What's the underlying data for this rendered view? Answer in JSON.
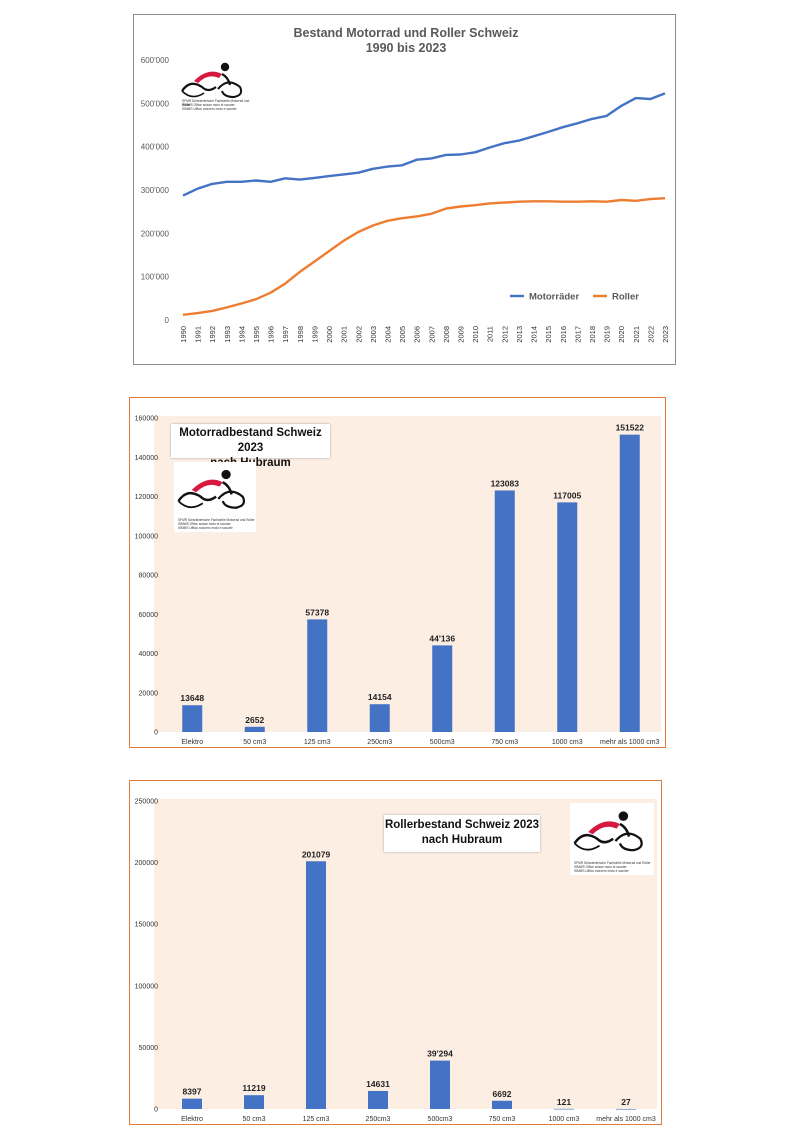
{
  "colors": {
    "motorraeder": "#4472c4",
    "roller": "#ed7d31",
    "bar": "#4472c4",
    "plot_bg": "#fdeee4",
    "logo_red": "#d7193f"
  },
  "logo": {
    "line1": "SFMR  Schweizerische Fachstelle Motorrad und Roller",
    "line2": "ISMWS  Office suisse moto et scooter",
    "line3": "ISMMS  Ufficio svizzero moto e scooter"
  },
  "chart_data": [
    {
      "type": "line",
      "title": "Bestand Motorrad und Roller Schweiz",
      "subtitle": "1990 bis 2023",
      "xlabel": "",
      "ylabel": "",
      "ylim": [
        0,
        600000
      ],
      "yticks": [
        "0",
        "100'000",
        "200'000",
        "300'000",
        "400'000",
        "500'000",
        "600'000"
      ],
      "x": [
        "1990",
        "1991",
        "1992",
        "1993",
        "1994",
        "1995",
        "1996",
        "1997",
        "1998",
        "1999",
        "2000",
        "2001",
        "2002",
        "2003",
        "2004",
        "2005",
        "2006",
        "2007",
        "2008",
        "2009",
        "2010",
        "2011",
        "2012",
        "2013",
        "2014",
        "2015",
        "2016",
        "2017",
        "2018",
        "2019",
        "2020",
        "2021",
        "2022",
        "2023"
      ],
      "series": [
        {
          "name": "Motorräder",
          "values": [
            287000,
            303000,
            314000,
            319000,
            319000,
            322000,
            319000,
            327000,
            324000,
            328000,
            332000,
            336000,
            340000,
            349000,
            354000,
            357000,
            370000,
            373000,
            381000,
            382000,
            387000,
            398000,
            408000,
            414000,
            424000,
            434000,
            445000,
            454000,
            464000,
            471000,
            494000,
            512000,
            510000,
            523000
          ]
        },
        {
          "name": "Roller",
          "values": [
            12000,
            16000,
            21000,
            29000,
            38000,
            48000,
            63000,
            84000,
            111000,
            135000,
            159000,
            183000,
            203000,
            218000,
            229000,
            235000,
            239000,
            245000,
            257000,
            262000,
            265000,
            269000,
            271000,
            273000,
            274000,
            274000,
            273000,
            273000,
            274000,
            273000,
            277000,
            275000,
            279000,
            281000
          ]
        }
      ],
      "legend": "bottom-right",
      "grid": false
    },
    {
      "type": "bar",
      "title": "Motorradbestand Schweiz 2023",
      "subtitle": "nach Hubraum",
      "categories": [
        "Elektro",
        "50 cm3",
        "125 cm3",
        "250cm3",
        "500cm3",
        "750 cm3",
        "1000 cm3",
        "mehr als 1000 cm3"
      ],
      "values": [
        13648,
        2652,
        57378,
        14154,
        44136,
        123083,
        117005,
        151522
      ],
      "data_labels": [
        "13648",
        "2652",
        "57378",
        "14154",
        "44'136",
        "123083",
        "117005",
        "151522"
      ],
      "ylim": [
        0,
        160000
      ],
      "yticks": [
        "0",
        "20000",
        "40000",
        "60000",
        "80000",
        "100000",
        "120000",
        "140000",
        "160000"
      ],
      "xlabel": "",
      "ylabel": "",
      "grid": false
    },
    {
      "type": "bar",
      "title": "Rollerbestand Schweiz 2023",
      "subtitle": "nach Hubraum",
      "categories": [
        "Elektro",
        "50 cm3",
        "125 cm3",
        "250cm3",
        "500cm3",
        "750 cm3",
        "1000 cm3",
        "mehr als 1000 cm3"
      ],
      "values": [
        8397,
        11219,
        201079,
        14631,
        39294,
        6692,
        121,
        27
      ],
      "data_labels": [
        "8397",
        "11219",
        "201079",
        "14631",
        "39'294",
        "6692",
        "121",
        "27"
      ],
      "ylim": [
        0,
        250000
      ],
      "yticks": [
        "0",
        "50000",
        "100000",
        "150000",
        "200000",
        "250000"
      ],
      "xlabel": "",
      "ylabel": "",
      "grid": false
    }
  ]
}
